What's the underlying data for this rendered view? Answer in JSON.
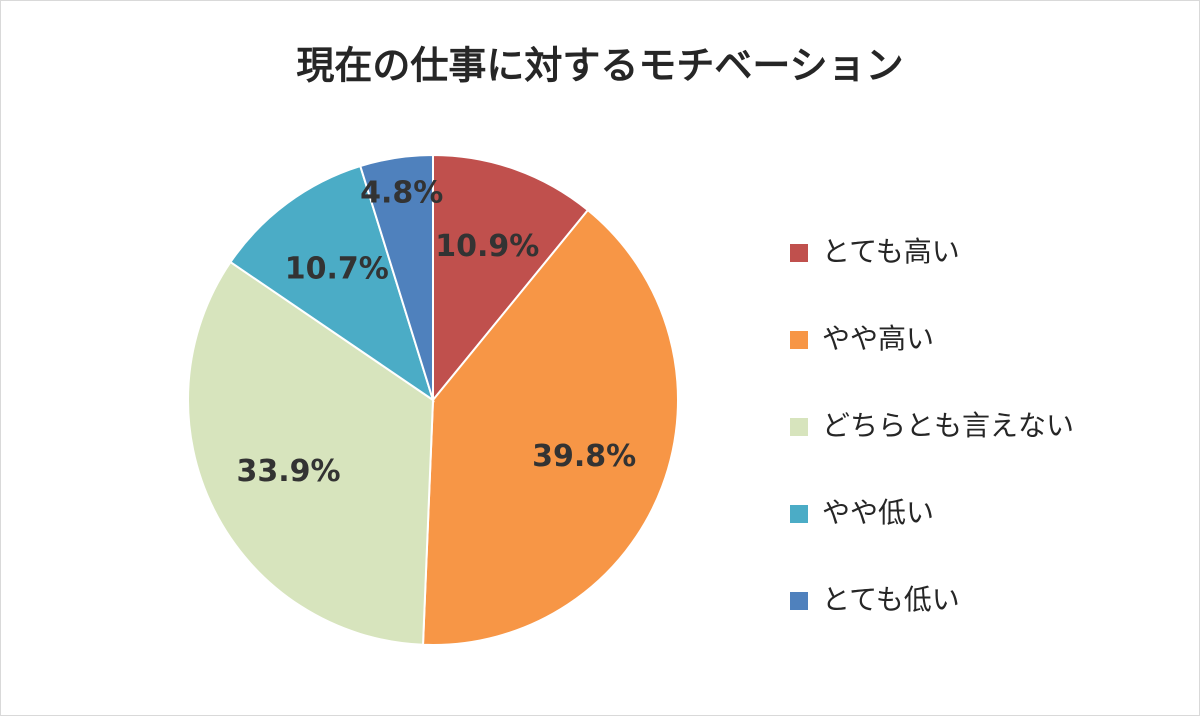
{
  "chart_data": {
    "type": "pie",
    "title": "現在の仕事に対するモチベーション",
    "categories": [
      "とても高い",
      "やや高い",
      "どちらとも言えない",
      "やや低い",
      "とても低い"
    ],
    "values": [
      10.9,
      39.8,
      33.9,
      10.7,
      4.8
    ],
    "value_labels": [
      "10.9%",
      "39.8%",
      "33.9%",
      "10.7%",
      "4.8%"
    ],
    "colors": [
      "#c0504d",
      "#f79646",
      "#d7e4bd",
      "#4bacc6",
      "#4f81bd"
    ],
    "legend": "right"
  }
}
